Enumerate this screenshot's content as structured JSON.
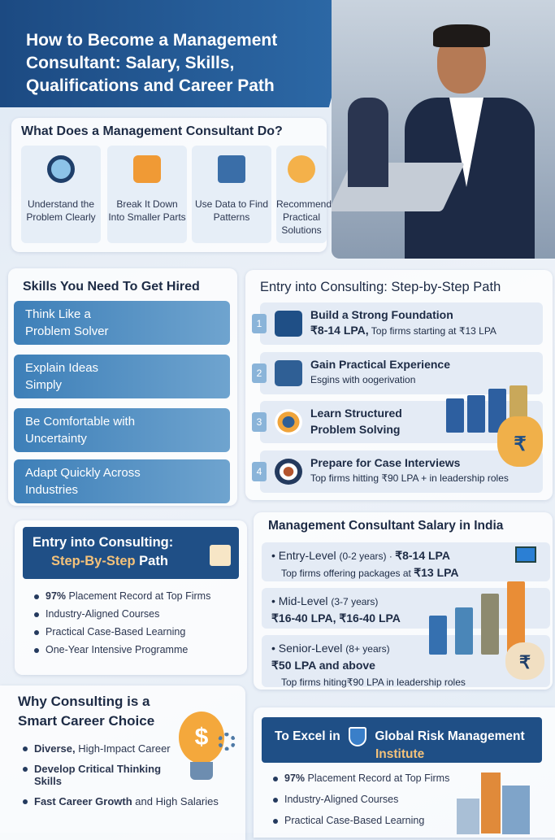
{
  "title": {
    "line1": "How to Become a Management",
    "line2": "Consultant: Salary, Skills,",
    "line3": "Qualifications and Career Path"
  },
  "what": {
    "heading": "What Does a Management Consultant Do?",
    "tiles": [
      {
        "label": "Understand the Problem Clearly",
        "icon": "magnifier-icon"
      },
      {
        "label": "Break It Down Into Smaller Parts",
        "icon": "puzzle-icon"
      },
      {
        "label": "Use Data to Find Patterns",
        "icon": "data-chart-icon"
      },
      {
        "label": "Recommend Practical Solutions",
        "icon": "lightbulb-hand-icon"
      }
    ]
  },
  "skills": {
    "heading": "Skills You Need To Get Hired",
    "items": [
      "Think Like a Problem Solver",
      "Explain Ideas Simply",
      "Be Comfortable with Uncertainty",
      "Adapt Quickly Across Industries"
    ]
  },
  "path": {
    "heading": "Entry into Consulting: Step-by-Step Path",
    "steps": [
      {
        "num": "1",
        "title": "Build a Strong Foundation",
        "sub_bold": "₹8-14 LPA,",
        "sub": " Top firms starting at ₹13 LPA",
        "icon": "graduation-cap-icon"
      },
      {
        "num": "2",
        "title": "Gain Practical Experience",
        "sub_bold": "",
        "sub": "Esgins with oogerivation",
        "icon": "briefcase-icon"
      },
      {
        "num": "3",
        "title": "Learn Structured Problem Solving",
        "sub_bold": "",
        "sub": "",
        "icon": "target-icon"
      },
      {
        "num": "4",
        "title": "Prepare for Case Interviews",
        "sub_bold": "",
        "sub": "Top firms hitting ₹90 LPA + in leadership roles",
        "icon": "target-arrow-icon"
      }
    ]
  },
  "program": {
    "heading1": "Entry into Consulting:",
    "heading2_accent": "Step-By-Step",
    "heading2_rest": " Path",
    "items": [
      {
        "bold": "97%",
        "text": " Placement Record at Top Firms"
      },
      {
        "bold": "",
        "text": "Industry-Aligned Courses"
      },
      {
        "bold": "",
        "text": "Practical Case-Based Learning"
      },
      {
        "bold": "",
        "text": "One-Year Intensive Programme"
      }
    ]
  },
  "salary": {
    "heading": "Management Consultant Salary in India",
    "levels": [
      {
        "name": "Entry-Level",
        "years": "(0-2 years)",
        "sep": " · ",
        "range": "₹8-14 LPA",
        "note": "Top firms offering packages at ",
        "note_bold": "₹13 LPA"
      },
      {
        "name": "Mid-Level",
        "years": "(3-7 years)",
        "sep": "",
        "range": "₹16-40 LPA, ₹16-40 LPA",
        "note": "",
        "note_bold": ""
      },
      {
        "name": "Senior-Level",
        "years": "(8+ years)",
        "sep": "",
        "range": "₹50 LPA and above",
        "note": "Top firms hiting₹90 LPA in leadership roles",
        "note_bold": ""
      }
    ],
    "currency_symbol": "₹"
  },
  "why": {
    "heading1": "Why Consulting is a",
    "heading2": "Smart Career Choice",
    "items": [
      {
        "bold": "Diverse,",
        "text": " High-Impact Career"
      },
      {
        "bold": "Develop Critical Thinking Skills",
        "text": ""
      },
      {
        "bold": "Fast Career Growth",
        "text": " and High Salaries"
      }
    ],
    "bulb_symbol": "$"
  },
  "institute": {
    "prefix": "To Excel in",
    "name1": "Global Risk Management",
    "name2": "Institute",
    "items": [
      {
        "bold": "97%",
        "text": " Placement Record at Top Firms"
      },
      {
        "bold": "",
        "text": "Industry-Aligned Courses"
      },
      {
        "bold": "",
        "text": "Practical Case-Based Learning"
      }
    ]
  },
  "colors": {
    "navy": "#1c4a82",
    "accent_orange": "#f0a43a",
    "skill_blue": "#3d7fb8"
  }
}
